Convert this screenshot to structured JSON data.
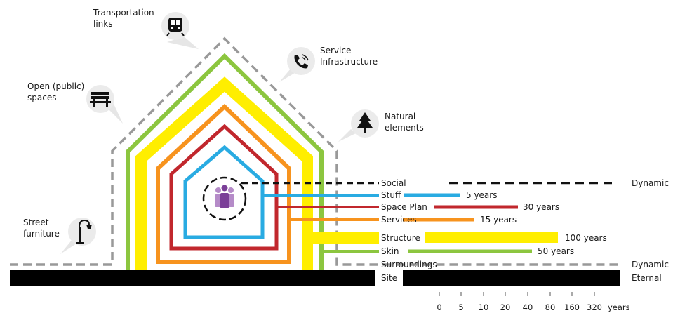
{
  "context": {
    "transport": [
      "Transportation",
      "links"
    ],
    "service": [
      "Service",
      "Infrastructure"
    ],
    "open_spaces": [
      "Open (public)",
      "spaces"
    ],
    "natural": [
      "Natural",
      "elements"
    ],
    "street": [
      "Street",
      "furniture"
    ]
  },
  "layers": [
    {
      "name": "Social",
      "color": "#111111",
      "duration": ""
    },
    {
      "name": "Stuff",
      "color": "#29abe2",
      "duration": "5 years"
    },
    {
      "name": "Space Plan",
      "color": "#c1272d",
      "duration": "30 years"
    },
    {
      "name": "Services",
      "color": "#f7931e",
      "duration": "15 years"
    },
    {
      "name": "Structure",
      "color": "#ffee00",
      "duration": "100 years"
    },
    {
      "name": "Skin",
      "color": "#8cc63f",
      "duration": "50 years"
    },
    {
      "name": "Surroundings",
      "color": "#999999",
      "duration": ""
    },
    {
      "name": "Site",
      "color": "#000000",
      "duration": ""
    }
  ],
  "states": {
    "dynamic_top": "Dynamic",
    "dynamic_bottom": "Dynamic",
    "eternal": "Eternal"
  },
  "scale": {
    "ticks": [
      "0",
      "5",
      "10",
      "20",
      "40",
      "80",
      "160",
      "320"
    ],
    "unit": "years"
  },
  "icon_names": [
    "train-icon",
    "phone-icon",
    "bench-icon",
    "tree-icon",
    "street-lamp-icon",
    "people-icon"
  ]
}
